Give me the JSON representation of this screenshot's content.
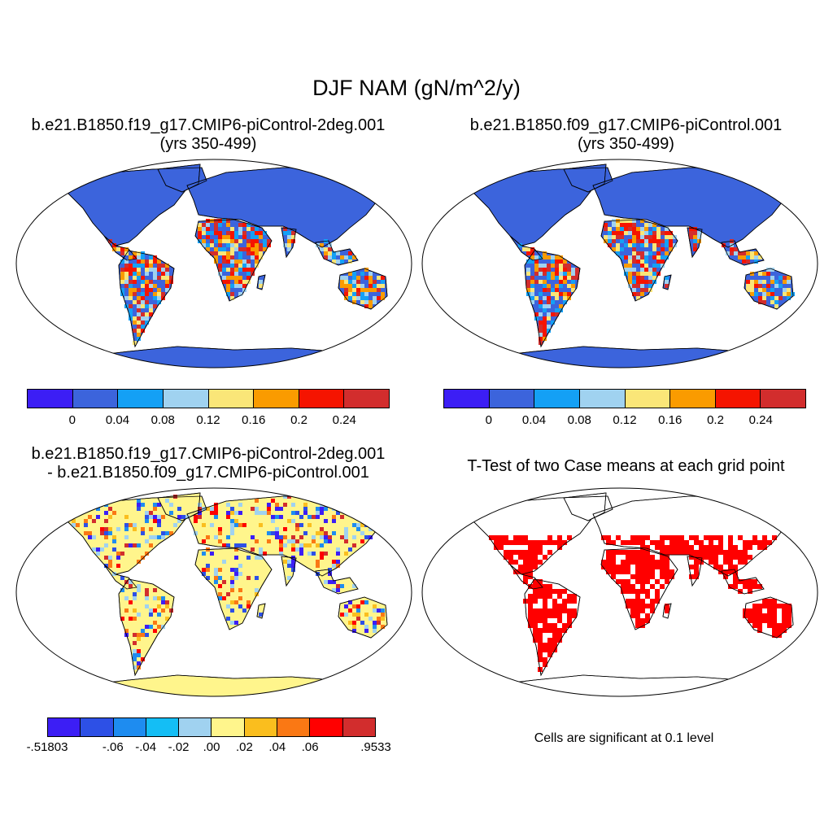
{
  "title": "DJF NAM (gN/m^2/y)",
  "panels": [
    {
      "title_line1": "b.e21.B1850.f19_g17.CMIP6-piControl-2deg.001",
      "title_line2": "(yrs 350-499)"
    },
    {
      "title_line1": "b.e21.B1850.f09_g17.CMIP6-piControl.001",
      "title_line2": "(yrs 350-499)"
    },
    {
      "title_line1": "b.e21.B1850.f19_g17.CMIP6-piControl-2deg.001",
      "title_line2": "- b.e21.B1850.f09_g17.CMIP6-piControl.001"
    },
    {
      "title_line1": "T-Test of two Case means at each grid point",
      "title_line2": ""
    }
  ],
  "colorbars": {
    "case": {
      "colors": [
        "#3c1ef5",
        "#3c64dc",
        "#14a0f5",
        "#a0d2f0",
        "#fae678",
        "#fa9b00",
        "#f51400",
        "#d22d2d"
      ],
      "labels": [
        "0",
        "0.04",
        "0.08",
        "0.12",
        "0.16",
        "0.2",
        "0.24"
      ]
    },
    "diff": {
      "colors": [
        "#3c1ef5",
        "#2d50e6",
        "#1e8cf0",
        "#14bef5",
        "#a0d2f0",
        "#fff58c",
        "#fabe1e",
        "#fa7814",
        "#ff0000",
        "#d22d2d"
      ],
      "labels": [
        "-.51803",
        "-.06",
        "-.04",
        "-.02",
        ".00",
        ".02",
        ".04",
        ".06",
        ".9533"
      ]
    }
  },
  "significance_note": "Cells are significant at 0.1 level",
  "significance_color": "#ff0000"
}
